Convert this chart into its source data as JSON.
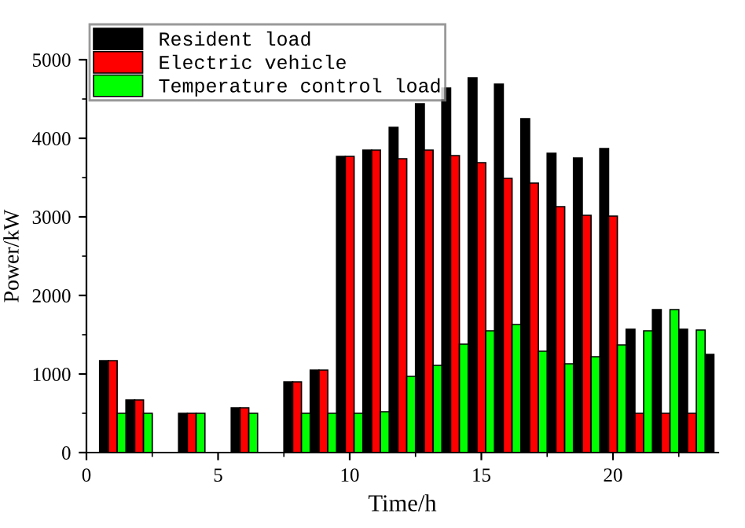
{
  "chart_data": {
    "type": "bar",
    "xlabel": "Time/h",
    "ylabel": "Power/kW",
    "x": [
      1,
      2,
      3,
      4,
      5,
      6,
      7,
      8,
      9,
      10,
      11,
      12,
      13,
      14,
      15,
      16,
      17,
      18,
      19,
      20,
      21,
      22,
      23,
      24
    ],
    "series": [
      {
        "name": "Resident load",
        "color": "#000000",
        "values": [
          1170,
          670,
          null,
          500,
          null,
          570,
          null,
          900,
          1050,
          3770,
          3850,
          4140,
          4440,
          4640,
          4770,
          4690,
          4250,
          3810,
          3750,
          3870,
          1570,
          1820,
          1570,
          1250
        ]
      },
      {
        "name": "Electric vehicle",
        "color": "#ff0000",
        "values": [
          1170,
          670,
          null,
          500,
          null,
          570,
          null,
          900,
          1050,
          3770,
          3850,
          3740,
          3850,
          3780,
          3690,
          3490,
          3430,
          3130,
          3020,
          3010,
          500,
          500,
          500,
          null
        ]
      },
      {
        "name": "Temperature control load",
        "color": "#00ff00",
        "values": [
          500,
          500,
          null,
          500,
          null,
          500,
          null,
          500,
          500,
          500,
          520,
          970,
          1110,
          1380,
          1550,
          1630,
          1290,
          1130,
          1220,
          1370,
          1550,
          1820,
          1560,
          null
        ]
      }
    ],
    "xlim": [
      0,
      24
    ],
    "xticks": [
      0,
      5,
      10,
      15,
      20
    ],
    "ylim": [
      0,
      5000
    ],
    "yticks": [
      0,
      1000,
      2000,
      3000,
      4000,
      5000
    ],
    "grid": false,
    "legend": "top left"
  }
}
